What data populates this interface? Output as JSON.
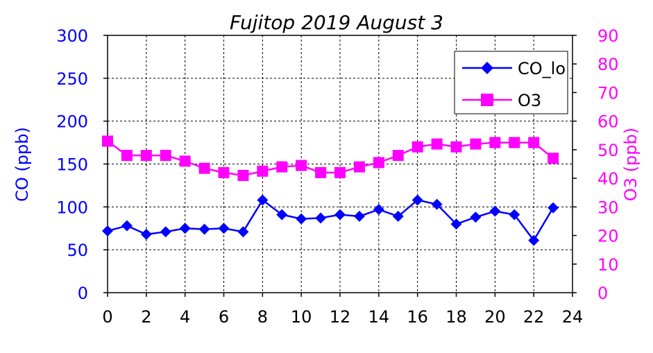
{
  "chart_data": {
    "type": "line",
    "title": "Fujitop 2019 August 3",
    "x": [
      0,
      1,
      2,
      3,
      4,
      5,
      6,
      7,
      8,
      9,
      10,
      11,
      12,
      13,
      14,
      15,
      16,
      17,
      18,
      19,
      20,
      21,
      22,
      23
    ],
    "x_ticks": [
      0,
      2,
      4,
      6,
      8,
      10,
      12,
      14,
      16,
      18,
      20,
      22,
      24
    ],
    "xlim": [
      0,
      24
    ],
    "ylabel_left": "CO (ppb)",
    "ylabel_right": "O3 (ppb)",
    "ylim_left": [
      0,
      300
    ],
    "ylim_right": [
      0,
      90
    ],
    "y_ticks_left": [
      0,
      50,
      100,
      150,
      200,
      250,
      300
    ],
    "y_ticks_right": [
      0,
      10,
      20,
      30,
      40,
      50,
      60,
      70,
      80,
      90
    ],
    "grid": true,
    "legend_position": "top-right",
    "colors": {
      "co": "#0000ff",
      "o3": "#ff00ff"
    },
    "series": [
      {
        "name": "CO_lo",
        "axis": "left",
        "marker": "diamond",
        "color": "#0000ff",
        "values": [
          72,
          78,
          68,
          71,
          75,
          74,
          75,
          71,
          108,
          91,
          86,
          87,
          91,
          89,
          97,
          89,
          108,
          103,
          80,
          88,
          95,
          91,
          61,
          99
        ]
      },
      {
        "name": "O3",
        "axis": "right",
        "marker": "square",
        "color": "#ff00ff",
        "values": [
          53,
          48,
          48,
          48,
          46,
          43.5,
          42,
          41,
          42.5,
          44,
          44.5,
          42,
          42,
          44,
          45.5,
          48,
          51,
          52,
          51,
          52,
          52.5,
          52.5,
          52.5,
          47
        ]
      }
    ]
  }
}
